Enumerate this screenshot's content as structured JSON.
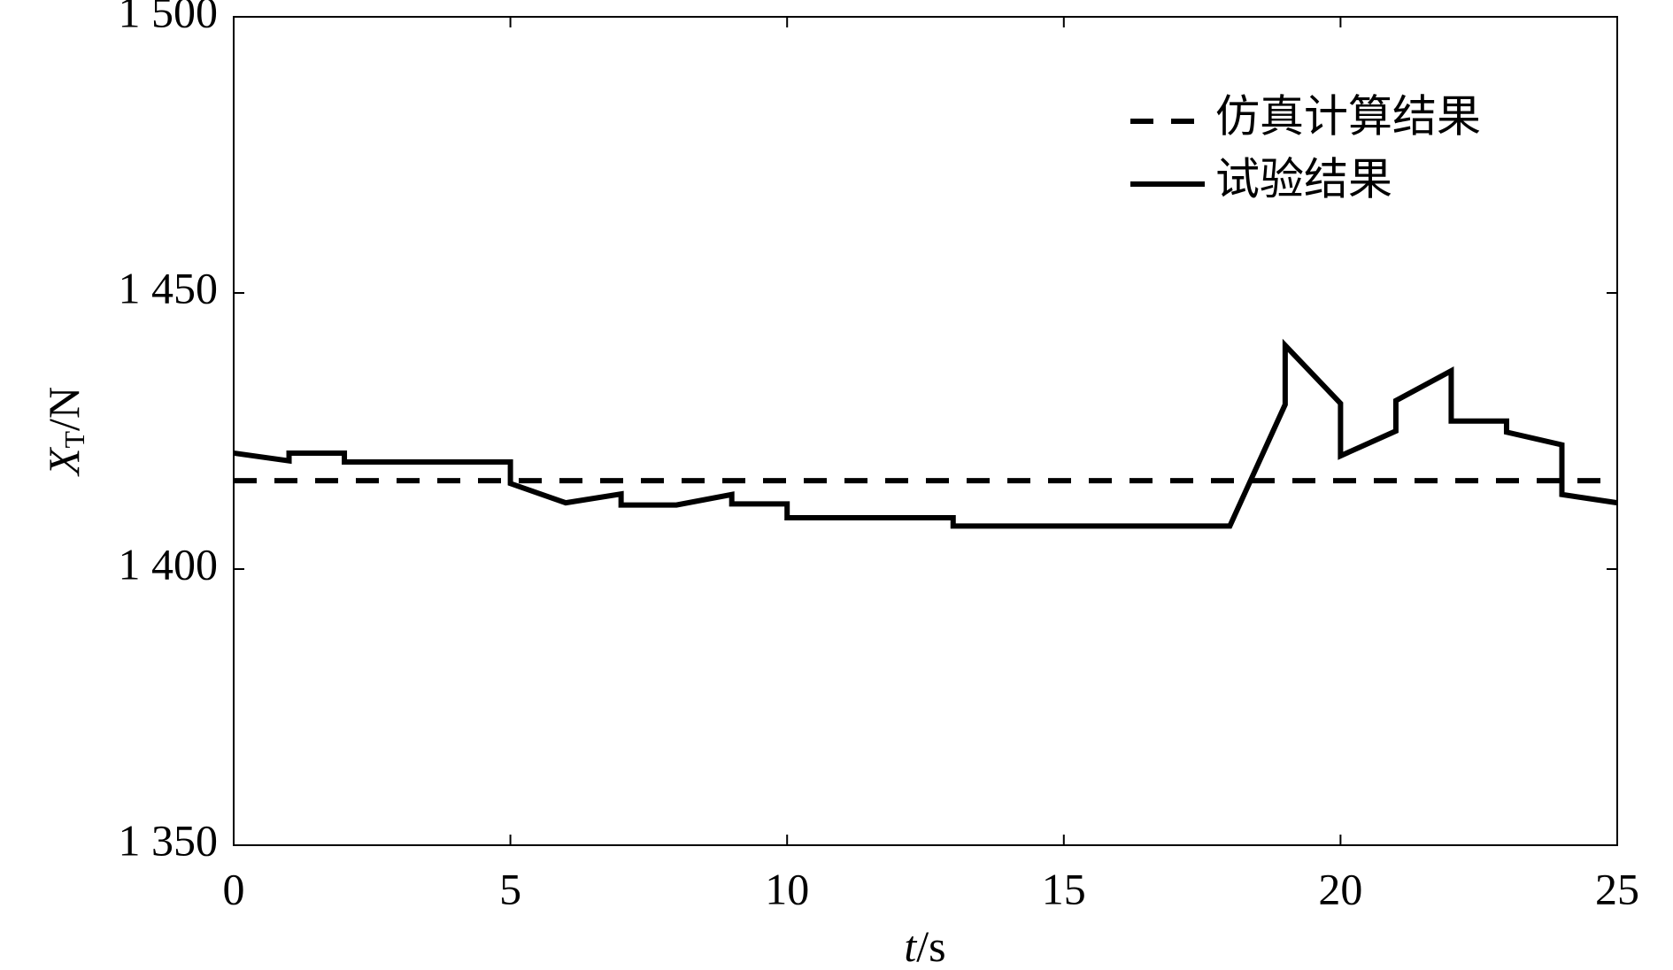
{
  "chart_data": {
    "type": "line",
    "ylabel": {
      "symbol": "X",
      "subscript": "T",
      "unit": "/N"
    },
    "xlabel": {
      "symbol": "t",
      "unit": "/s"
    },
    "xlim": [
      0,
      25
    ],
    "xticks": [
      0,
      5,
      10,
      15,
      20,
      25
    ],
    "ylim": [
      1350,
      1500
    ],
    "yticks": [
      {
        "value": 1350,
        "label": "1 350"
      },
      {
        "value": 1400,
        "label": "1 400"
      },
      {
        "value": 1450,
        "label": "1 450"
      },
      {
        "value": 1500,
        "label": "1 500"
      }
    ],
    "legend": "upper right",
    "series": [
      {
        "name": "仿真计算结果",
        "color": "#000000",
        "dash": true,
        "x": [
          0,
          25
        ],
        "values": [
          1416,
          1416
        ]
      },
      {
        "name": "试验结果",
        "color": "#000000",
        "dash": false,
        "x": [
          0,
          1,
          1,
          2,
          2,
          5,
          5,
          6,
          7,
          7,
          8,
          9,
          9,
          10,
          10,
          13,
          13,
          18,
          19,
          19,
          20,
          20,
          21,
          21,
          22,
          22,
          23,
          23,
          24,
          24,
          25
        ],
        "values": [
          1421,
          1419.6,
          1421,
          1421,
          1419.4,
          1419.4,
          1415.5,
          1412,
          1413.6,
          1411.6,
          1411.6,
          1413.5,
          1411.8,
          1411.8,
          1409.3,
          1409.3,
          1407.8,
          1407.8,
          1429.8,
          1440.5,
          1430,
          1420.5,
          1425,
          1430.5,
          1435.9,
          1426.8,
          1426.8,
          1424.8,
          1422.5,
          1413.5,
          1412
        ]
      }
    ]
  }
}
